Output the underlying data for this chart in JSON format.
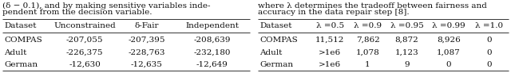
{
  "left_table": {
    "headers": [
      "Dataset",
      "Unconstrained",
      "δ-Fair",
      "Independent"
    ],
    "rows": [
      [
        "COMPAS",
        "-207,055",
        "-207,395",
        "-208,639"
      ],
      [
        "Adult",
        "-226,375",
        "-228,763",
        "-232,180"
      ],
      [
        "German",
        "-12,630",
        "-12,635",
        "-12,649"
      ]
    ]
  },
  "right_table": {
    "headers": [
      "Dataset",
      "λ =0.5",
      "λ =0.9",
      "λ =0.95",
      "λ =0.99",
      "λ =1.0"
    ],
    "rows": [
      [
        "COMPAS",
        "11,512",
        "7,862",
        "8,872",
        "8,926",
        "0"
      ],
      [
        "Adult",
        ">1e6",
        "1,078",
        "1,123",
        "1,087",
        "0"
      ],
      [
        "German",
        ">1e6",
        "1",
        "9",
        "0",
        "0"
      ]
    ]
  },
  "left_text_lines": [
    "(δ − 0.1), and by making sensitive variables inde-",
    "pendent from the decision variable."
  ],
  "right_text_lines": [
    "where λ determines the tradeoff between fairness and",
    "accuracy in the data repair step [8]."
  ],
  "background_color": "#ffffff",
  "line_color": "#333333",
  "font_size": 7.5,
  "text_font_size": 7.5
}
